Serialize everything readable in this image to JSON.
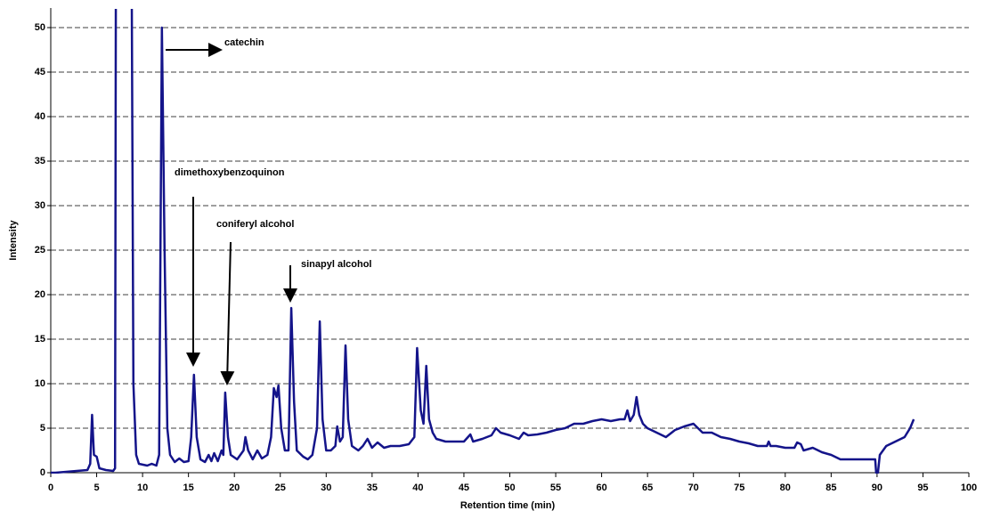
{
  "chart_data": {
    "type": "line",
    "xlabel": "Retention time (min)",
    "ylabel": "Intensity",
    "color": "#14148a",
    "grid": true,
    "xlim": [
      0,
      100
    ],
    "xticks": [
      0,
      5,
      10,
      15,
      20,
      25,
      30,
      35,
      40,
      45,
      50,
      55,
      60,
      65,
      70,
      75,
      80,
      85,
      90,
      95,
      100
    ],
    "ylim": [
      0,
      52
    ],
    "yticks": [
      0,
      5,
      10,
      15,
      20,
      25,
      30,
      35,
      40,
      45,
      50
    ],
    "annotations": [
      "catechin",
      "dimethoxybenzoquinon",
      "coniferyl alcohol",
      "sinapyl alcohol"
    ],
    "x": [
      0,
      0.5,
      4.0,
      4.3,
      4.5,
      4.7,
      5.0,
      5.3,
      6,
      6.8,
      7.0,
      7.1,
      8.8,
      9.0,
      9.3,
      9.6,
      10.5,
      11,
      11.5,
      11.8,
      12.1,
      12.4,
      12.7,
      13,
      13.5,
      14,
      14.5,
      15,
      15.3,
      15.6,
      15.9,
      16.3,
      16.8,
      17.2,
      17.5,
      17.8,
      18.2,
      18.6,
      18.8,
      19.0,
      19.3,
      19.6,
      20.3,
      21.0,
      21.2,
      21.5,
      22,
      22.5,
      23,
      23.6,
      24,
      24.3,
      24.6,
      24.8,
      25.1,
      25.5,
      25.9,
      26.2,
      26.5,
      26.8,
      27.5,
      28,
      28.5,
      29,
      29.3,
      29.6,
      30,
      30.5,
      31,
      31.2,
      31.5,
      31.8,
      32.1,
      32.4,
      32.8,
      33.5,
      34,
      34.5,
      35,
      35.6,
      36.3,
      37,
      38,
      39,
      39.6,
      39.9,
      40.3,
      40.6,
      40.9,
      41.2,
      41.6,
      42,
      43,
      45,
      45.7,
      46,
      47,
      48,
      48.5,
      49,
      50,
      51,
      51.5,
      52,
      53,
      54,
      55,
      56,
      57,
      58,
      59,
      60,
      61,
      62,
      62.5,
      62.8,
      63.1,
      63.5,
      63.8,
      64.1,
      64.5,
      65,
      66,
      67,
      68,
      69,
      70,
      71,
      72,
      73,
      74,
      75,
      76,
      77,
      78,
      78.2,
      78.4,
      79,
      80,
      81,
      81.3,
      81.7,
      82,
      83,
      84,
      85,
      86,
      88,
      89.8,
      89.9,
      90.1,
      90.3,
      91,
      92,
      93,
      93.6,
      94
    ],
    "values": [
      0,
      0,
      0.3,
      1,
      6.5,
      2,
      1.8,
      0.5,
      0.3,
      0.2,
      0.5,
      60,
      60,
      10,
      2,
      1,
      0.8,
      1,
      0.8,
      2,
      50,
      25,
      5,
      2,
      1.2,
      1.6,
      1.2,
      1.3,
      4,
      11,
      4,
      1.5,
      1.2,
      2,
      1.3,
      2.2,
      1.3,
      2.5,
      2,
      9,
      4,
      2,
      1.5,
      2.5,
      4,
      2.5,
      1.5,
      2.5,
      1.6,
      2,
      4,
      9.5,
      8.5,
      9.8,
      5,
      2.5,
      2.5,
      18.5,
      8,
      2.5,
      1.8,
      1.5,
      2,
      5,
      17,
      6,
      2.5,
      2.5,
      3,
      5.2,
      3.5,
      4,
      14.3,
      6,
      3,
      2.5,
      3,
      3.8,
      2.8,
      3.4,
      2.8,
      3,
      3,
      3.2,
      4,
      14,
      7,
      5.5,
      12,
      6,
      4.5,
      3.8,
      3.5,
      3.5,
      4.3,
      3.5,
      3.8,
      4.2,
      5,
      4.5,
      4.2,
      3.8,
      4.5,
      4.2,
      4.3,
      4.5,
      4.8,
      5,
      5.5,
      5.5,
      5.8,
      6,
      5.8,
      6,
      6,
      7,
      5.8,
      6.5,
      8.5,
      6.5,
      5.5,
      5,
      4.5,
      4,
      4.8,
      5.2,
      5.5,
      4.5,
      4.5,
      4,
      3.8,
      3.5,
      3.3,
      3,
      3,
      3.5,
      3,
      3,
      2.8,
      2.8,
      3.4,
      3.2,
      2.5,
      2.8,
      2.3,
      2,
      1.5,
      1.5,
      1.5,
      0,
      0,
      2,
      3,
      3.5,
      4,
      5,
      6
    ]
  }
}
